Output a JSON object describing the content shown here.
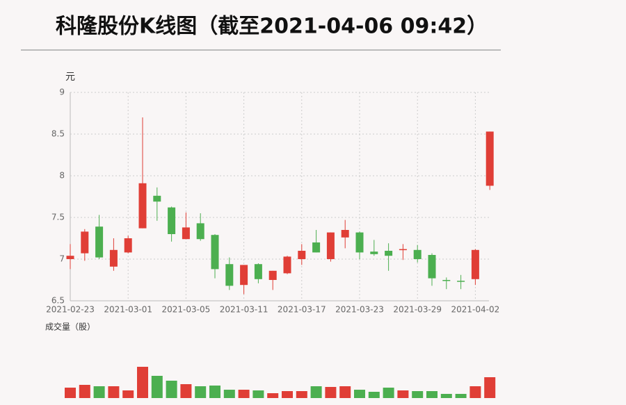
{
  "chart_data": [
    {
      "type": "candlestick",
      "title": "科隆股份K线图（截至2021-04-06 09:42）",
      "y_label": "元",
      "categories": [
        "2021-02-23",
        null,
        null,
        null,
        "2021-03-01",
        null,
        null,
        null,
        "2021-03-05",
        null,
        null,
        null,
        "2021-03-11",
        null,
        null,
        null,
        "2021-03-17",
        null,
        null,
        null,
        "2021-03-23",
        null,
        null,
        null,
        "2021-03-29",
        null,
        null,
        null,
        "2021-04-02",
        null
      ],
      "open": [
        7.0,
        7.07,
        7.39,
        6.91,
        7.08,
        7.37,
        7.76,
        7.62,
        7.24,
        7.43,
        7.29,
        6.94,
        6.69,
        6.94,
        6.75,
        6.83,
        7.0,
        7.2,
        7.0,
        7.26,
        7.32,
        7.09,
        7.1,
        7.11,
        7.11,
        7.05,
        6.75,
        6.74,
        6.76,
        7.88
      ],
      "high": [
        7.18,
        7.36,
        7.53,
        7.25,
        7.28,
        8.7,
        7.86,
        7.63,
        7.56,
        7.55,
        7.3,
        7.02,
        6.93,
        6.95,
        6.86,
        7.04,
        7.18,
        7.35,
        7.32,
        7.47,
        7.33,
        7.23,
        7.19,
        7.18,
        7.17,
        7.07,
        6.78,
        6.81,
        7.12,
        8.53
      ],
      "low": [
        6.88,
        6.98,
        7.0,
        6.86,
        7.07,
        7.37,
        7.46,
        7.21,
        7.24,
        7.22,
        6.77,
        6.63,
        6.58,
        6.71,
        6.63,
        6.82,
        6.93,
        7.08,
        6.97,
        7.13,
        7.0,
        7.04,
        6.86,
        6.99,
        6.96,
        6.68,
        6.64,
        6.64,
        6.69,
        7.83
      ],
      "close": [
        7.04,
        7.33,
        7.02,
        7.11,
        7.25,
        7.91,
        7.69,
        7.3,
        7.38,
        7.24,
        6.88,
        6.68,
        6.93,
        6.76,
        6.86,
        7.03,
        7.1,
        7.08,
        7.32,
        7.35,
        7.08,
        7.06,
        7.04,
        7.12,
        7.0,
        6.77,
        6.74,
        6.73,
        7.11,
        8.53
      ],
      "ylim": [
        6.5,
        9
      ],
      "yticks": [
        6.5,
        7,
        7.5,
        8,
        8.5,
        9
      ],
      "grid": true,
      "up_color": "#e03e36",
      "down_color": "#4caf50"
    },
    {
      "type": "bar",
      "title": "成交量（股）",
      "values": [
        15,
        19,
        17,
        17,
        11,
        45,
        32,
        25,
        20,
        17,
        18,
        12,
        12,
        11,
        7,
        10,
        10,
        17,
        16,
        17,
        12,
        9,
        15,
        11,
        10,
        10,
        6,
        6,
        17,
        30
      ]
    }
  ]
}
